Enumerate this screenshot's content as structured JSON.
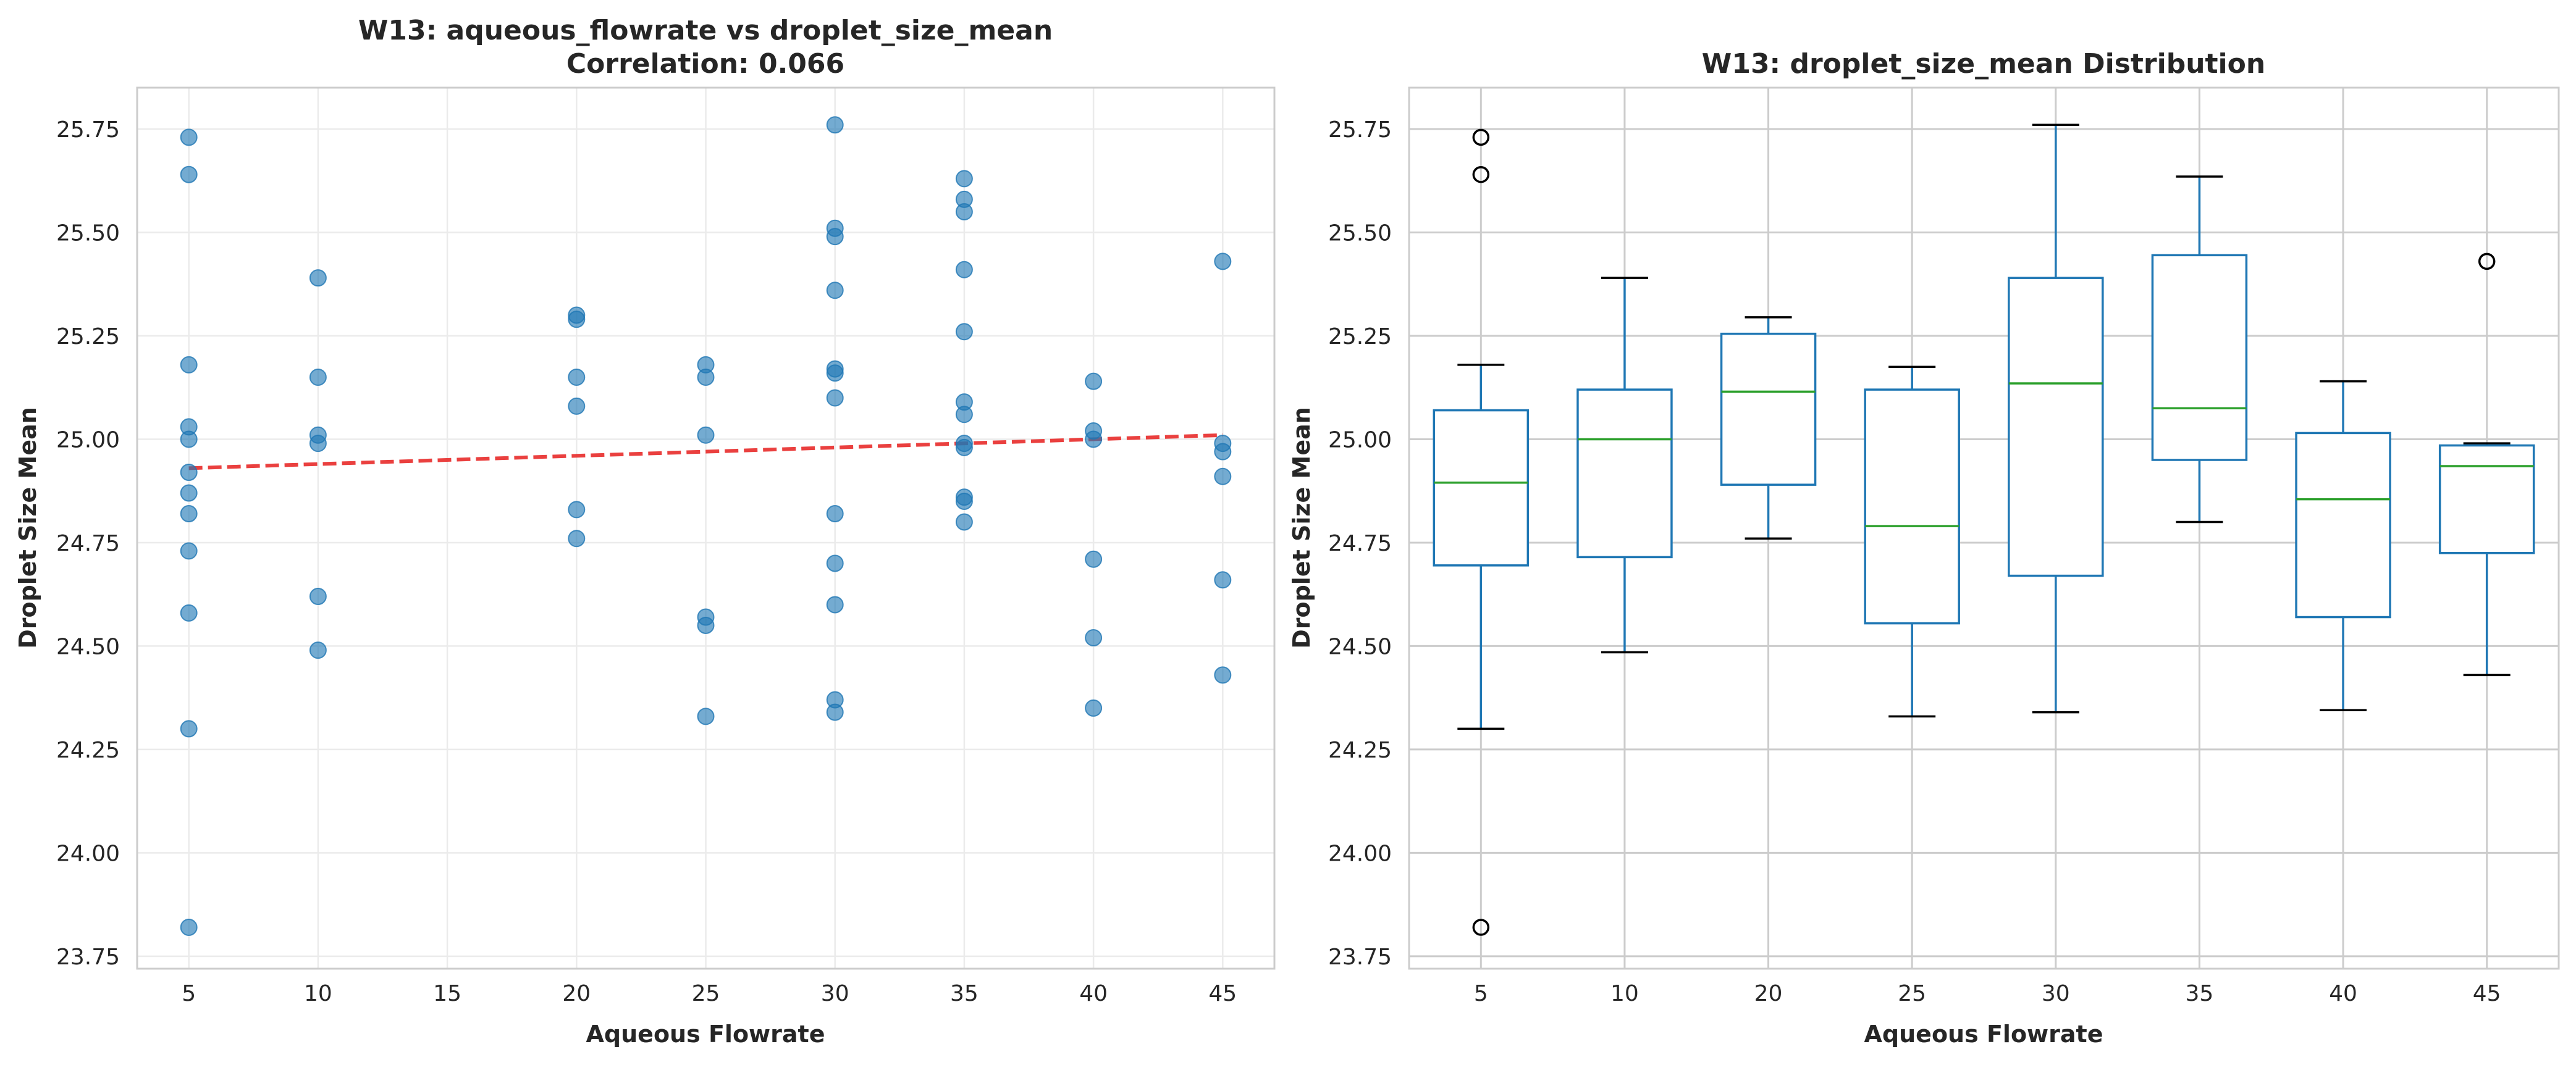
{
  "chart_data": [
    {
      "type": "scatter",
      "title": "W13: aqueous_flowrate vs droplet_size_mean",
      "subtitle": "Correlation: 0.066",
      "xlabel": "Aqueous Flowrate",
      "ylabel": "Droplet Size Mean",
      "xlim": [
        3,
        47
      ],
      "ylim": [
        23.72,
        25.85
      ],
      "xticks": [
        5,
        10,
        15,
        20,
        25,
        30,
        35,
        40,
        45
      ],
      "xtick_labels": [
        "5",
        "10",
        "15",
        "20",
        "25",
        "30",
        "35",
        "40",
        "45"
      ],
      "yticks": [
        23.75,
        24.0,
        24.25,
        24.5,
        24.75,
        25.0,
        25.25,
        25.5,
        25.75
      ],
      "ytick_labels": [
        "23.75",
        "24.00",
        "24.25",
        "24.50",
        "24.75",
        "25.00",
        "25.25",
        "25.50",
        "25.75"
      ],
      "grid": true,
      "point_color": "#1f77b4",
      "trend_color": "#e8302f",
      "points": [
        {
          "x": 5,
          "y": 25.73
        },
        {
          "x": 5,
          "y": 25.64
        },
        {
          "x": 5,
          "y": 25.18
        },
        {
          "x": 5,
          "y": 25.03
        },
        {
          "x": 5,
          "y": 25.0
        },
        {
          "x": 5,
          "y": 24.92
        },
        {
          "x": 5,
          "y": 24.87
        },
        {
          "x": 5,
          "y": 24.82
        },
        {
          "x": 5,
          "y": 24.73
        },
        {
          "x": 5,
          "y": 24.58
        },
        {
          "x": 5,
          "y": 24.3
        },
        {
          "x": 5,
          "y": 23.82
        },
        {
          "x": 10,
          "y": 25.39
        },
        {
          "x": 10,
          "y": 25.15
        },
        {
          "x": 10,
          "y": 25.01
        },
        {
          "x": 10,
          "y": 24.99
        },
        {
          "x": 10,
          "y": 24.62
        },
        {
          "x": 10,
          "y": 24.49
        },
        {
          "x": 20,
          "y": 25.3
        },
        {
          "x": 20,
          "y": 25.29
        },
        {
          "x": 20,
          "y": 25.15
        },
        {
          "x": 20,
          "y": 25.08
        },
        {
          "x": 20,
          "y": 24.83
        },
        {
          "x": 20,
          "y": 24.76
        },
        {
          "x": 25,
          "y": 25.18
        },
        {
          "x": 25,
          "y": 25.15
        },
        {
          "x": 25,
          "y": 25.01
        },
        {
          "x": 25,
          "y": 24.57
        },
        {
          "x": 25,
          "y": 24.55
        },
        {
          "x": 25,
          "y": 24.33
        },
        {
          "x": 30,
          "y": 25.76
        },
        {
          "x": 30,
          "y": 25.51
        },
        {
          "x": 30,
          "y": 25.49
        },
        {
          "x": 30,
          "y": 25.36
        },
        {
          "x": 30,
          "y": 25.17
        },
        {
          "x": 30,
          "y": 25.16
        },
        {
          "x": 30,
          "y": 25.1
        },
        {
          "x": 30,
          "y": 24.82
        },
        {
          "x": 30,
          "y": 24.7
        },
        {
          "x": 30,
          "y": 24.6
        },
        {
          "x": 30,
          "y": 24.37
        },
        {
          "x": 30,
          "y": 24.34
        },
        {
          "x": 35,
          "y": 25.63
        },
        {
          "x": 35,
          "y": 25.58
        },
        {
          "x": 35,
          "y": 25.55
        },
        {
          "x": 35,
          "y": 25.41
        },
        {
          "x": 35,
          "y": 25.26
        },
        {
          "x": 35,
          "y": 25.09
        },
        {
          "x": 35,
          "y": 25.06
        },
        {
          "x": 35,
          "y": 24.99
        },
        {
          "x": 35,
          "y": 24.98
        },
        {
          "x": 35,
          "y": 24.86
        },
        {
          "x": 35,
          "y": 24.85
        },
        {
          "x": 35,
          "y": 24.8
        },
        {
          "x": 40,
          "y": 25.14
        },
        {
          "x": 40,
          "y": 25.02
        },
        {
          "x": 40,
          "y": 25.0
        },
        {
          "x": 40,
          "y": 24.71
        },
        {
          "x": 40,
          "y": 24.52
        },
        {
          "x": 40,
          "y": 24.35
        },
        {
          "x": 45,
          "y": 25.43
        },
        {
          "x": 45,
          "y": 24.99
        },
        {
          "x": 45,
          "y": 24.97
        },
        {
          "x": 45,
          "y": 24.91
        },
        {
          "x": 45,
          "y": 24.66
        },
        {
          "x": 45,
          "y": 24.43
        }
      ],
      "trend_line": {
        "x": [
          5,
          45
        ],
        "y": [
          24.93,
          25.01
        ]
      }
    },
    {
      "type": "box",
      "title": "W13: droplet_size_mean Distribution",
      "xlabel": "Aqueous Flowrate",
      "ylabel": "Droplet Size Mean",
      "ylim": [
        23.72,
        25.85
      ],
      "yticks": [
        23.75,
        24.0,
        24.25,
        24.5,
        24.75,
        25.0,
        25.25,
        25.5,
        25.75
      ],
      "ytick_labels": [
        "23.75",
        "24.00",
        "24.25",
        "24.50",
        "24.75",
        "25.00",
        "25.25",
        "25.50",
        "25.75"
      ],
      "grid": true,
      "box_color": "#1f77b4",
      "median_color": "#2ca02c",
      "categories": [
        "5",
        "10",
        "20",
        "25",
        "30",
        "35",
        "40",
        "45"
      ],
      "boxes": [
        {
          "whisker_low": 24.3,
          "q1": 24.695,
          "median": 24.895,
          "q3": 25.07,
          "whisker_high": 25.18,
          "outliers": [
            25.73,
            25.64,
            23.82
          ]
        },
        {
          "whisker_low": 24.485,
          "q1": 24.715,
          "median": 25.0,
          "q3": 25.12,
          "whisker_high": 25.39,
          "outliers": []
        },
        {
          "whisker_low": 24.76,
          "q1": 24.89,
          "median": 25.115,
          "q3": 25.255,
          "whisker_high": 25.295,
          "outliers": []
        },
        {
          "whisker_low": 24.33,
          "q1": 24.555,
          "median": 24.79,
          "q3": 25.12,
          "whisker_high": 25.175,
          "outliers": []
        },
        {
          "whisker_low": 24.34,
          "q1": 24.67,
          "median": 25.135,
          "q3": 25.39,
          "whisker_high": 25.76,
          "outliers": []
        },
        {
          "whisker_low": 24.8,
          "q1": 24.95,
          "median": 25.075,
          "q3": 25.445,
          "whisker_high": 25.635,
          "outliers": []
        },
        {
          "whisker_low": 24.345,
          "q1": 24.57,
          "median": 24.855,
          "q3": 25.015,
          "whisker_high": 25.14,
          "outliers": []
        },
        {
          "whisker_low": 24.43,
          "q1": 24.725,
          "median": 24.935,
          "q3": 24.985,
          "whisker_high": 24.99,
          "outliers": [
            25.43
          ]
        }
      ]
    }
  ]
}
